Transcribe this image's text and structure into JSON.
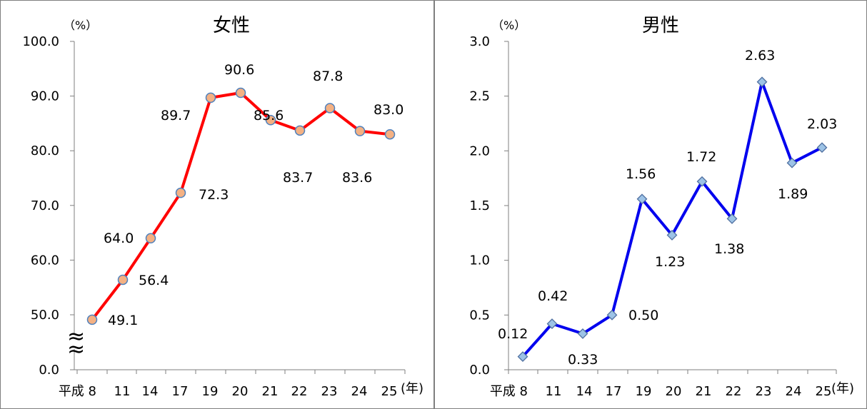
{
  "chart_data": [
    {
      "type": "line",
      "title": "女性",
      "y_unit": "（%）",
      "x_unit": "(年)",
      "categories": [
        "平成 8",
        "11",
        "14",
        "17",
        "19",
        "20",
        "21",
        "22",
        "23",
        "24",
        "25"
      ],
      "values": [
        49.1,
        56.4,
        64.0,
        72.3,
        89.7,
        90.6,
        85.6,
        83.7,
        87.8,
        83.6,
        83.0
      ],
      "data_labels": [
        "49.1",
        "56.4",
        "64.0",
        "72.3",
        "89.7",
        "90.6",
        "85.6",
        "83.7",
        "87.8",
        "83.6",
        "83.0"
      ],
      "y_ticks": [
        "0.0",
        "50.0",
        "60.0",
        "70.0",
        "80.0",
        "90.0",
        "100.0"
      ],
      "axis_break": "≈",
      "ylim": [
        0,
        100
      ],
      "line_color": "#ff0000",
      "marker_color": "#f4b183",
      "marker_edge_color": "#4f81bd",
      "marker": "circle"
    },
    {
      "type": "line",
      "title": "男性",
      "y_unit": "（%）",
      "x_unit": "(年)",
      "categories": [
        "平成 8",
        "11",
        "14",
        "17",
        "19",
        "20",
        "21",
        "22",
        "23",
        "24",
        "25"
      ],
      "values": [
        0.12,
        0.42,
        0.33,
        0.5,
        1.56,
        1.23,
        1.72,
        1.38,
        2.63,
        1.89,
        2.03
      ],
      "data_labels": [
        "0.12",
        "0.42",
        "0.33",
        "0.50",
        "1.56",
        "1.23",
        "1.72",
        "1.38",
        "2.63",
        "1.89",
        "2.03"
      ],
      "y_ticks": [
        "0.0",
        "0.5",
        "1.0",
        "1.5",
        "2.0",
        "2.5",
        "3.0"
      ],
      "ylim": [
        0,
        3
      ],
      "line_color": "#0000ee",
      "marker_color": "#9dc3e6",
      "marker_edge_color": "#4f6fa0",
      "marker": "diamond"
    }
  ]
}
